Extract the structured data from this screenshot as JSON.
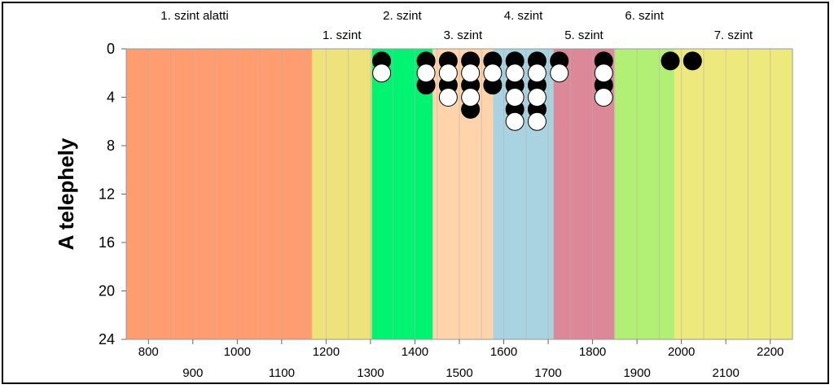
{
  "chart_data": {
    "type": "scatter",
    "ylabel": "A telephely",
    "xlim": [
      750,
      2250
    ],
    "ylim": [
      24,
      0
    ],
    "y_reversed": true,
    "grid_x_minor_step": 50,
    "grid": true,
    "y_ticks": [
      "0",
      "4",
      "8",
      "12",
      "16",
      "20",
      "24"
    ],
    "y_tick_values": [
      0,
      4,
      8,
      12,
      16,
      20,
      24
    ],
    "x_ticks_upper": [
      "800",
      "1000",
      "1200",
      "1400",
      "1600",
      "1800",
      "2000",
      "2200"
    ],
    "x_ticks_upper_values": [
      800,
      1000,
      1200,
      1400,
      1600,
      1800,
      2000,
      2200
    ],
    "x_ticks_lower": [
      "900",
      "1100",
      "1300",
      "1500",
      "1700",
      "1900",
      "2100"
    ],
    "x_ticks_lower_values": [
      900,
      1100,
      1300,
      1500,
      1700,
      1900,
      2100
    ],
    "bands": [
      {
        "label": "1. szint alatti",
        "x0": 750,
        "x1": 1168,
        "color": "#ff9c70",
        "row": "top"
      },
      {
        "label": "1. szint",
        "x0": 1168,
        "x1": 1303,
        "color": "#ede27c",
        "row": "bottom"
      },
      {
        "label": "2. szint",
        "x0": 1303,
        "x1": 1440,
        "color": "#00f472",
        "row": "top"
      },
      {
        "label": "3. szint",
        "x0": 1440,
        "x1": 1576,
        "color": "#ffd4aa",
        "row": "bottom"
      },
      {
        "label": "4. szint",
        "x0": 1576,
        "x1": 1712,
        "color": "#a9d3e0",
        "row": "top"
      },
      {
        "label": "5. szint",
        "x0": 1712,
        "x1": 1849,
        "color": "#dc8898",
        "row": "bottom"
      },
      {
        "label": "6. szint",
        "x0": 1849,
        "x1": 1984,
        "color": "#b1f075",
        "row": "top"
      },
      {
        "label": "7. szint",
        "x0": 1984,
        "x1": 2250,
        "color": "#ede97d",
        "row": "bottom"
      }
    ],
    "series": [
      {
        "marker": "filled",
        "color": "#000000",
        "points": [
          [
            1325,
            1
          ],
          [
            1425,
            1
          ],
          [
            1425,
            3
          ],
          [
            1475,
            1
          ],
          [
            1475,
            3
          ],
          [
            1525,
            1
          ],
          [
            1525,
            3
          ],
          [
            1525,
            5
          ],
          [
            1575,
            1
          ],
          [
            1575,
            3
          ],
          [
            1625,
            1
          ],
          [
            1625,
            3
          ],
          [
            1625,
            5
          ],
          [
            1675,
            1
          ],
          [
            1675,
            3
          ],
          [
            1675,
            5
          ],
          [
            1725,
            1
          ],
          [
            1825,
            1
          ],
          [
            1825,
            3
          ],
          [
            1975,
            1
          ],
          [
            2025,
            1
          ]
        ]
      },
      {
        "marker": "hollow",
        "color": "#ffffff",
        "points": [
          [
            1325,
            2
          ],
          [
            1425,
            2
          ],
          [
            1475,
            2
          ],
          [
            1475,
            4
          ],
          [
            1525,
            2
          ],
          [
            1525,
            4
          ],
          [
            1575,
            2
          ],
          [
            1625,
            2
          ],
          [
            1625,
            4
          ],
          [
            1625,
            6
          ],
          [
            1675,
            2
          ],
          [
            1675,
            4
          ],
          [
            1675,
            6
          ],
          [
            1725,
            2
          ],
          [
            1825,
            2
          ],
          [
            1825,
            4
          ]
        ]
      }
    ]
  }
}
